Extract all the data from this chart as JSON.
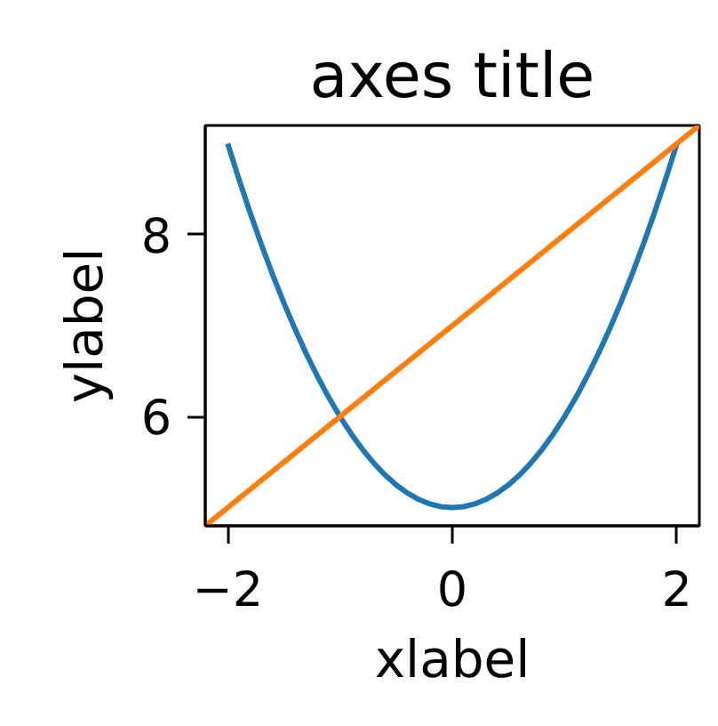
{
  "chart_data": {
    "type": "line",
    "title": "axes title",
    "xlabel": "xlabel",
    "ylabel": "ylabel",
    "xlim": [
      -2.2,
      2.2
    ],
    "ylim": [
      4.8,
      9.2
    ],
    "xticks": [
      {
        "value": -2,
        "label": "−2"
      },
      0,
      2
    ],
    "yticks": [
      6,
      8
    ],
    "series": [
      {
        "color": "#1f77b4",
        "x": [
          -2,
          -1.9,
          -1.8,
          -1.7,
          -1.6,
          -1.5,
          -1.4,
          -1.3,
          -1.2,
          -1.1,
          -1,
          -0.9,
          -0.8,
          -0.7,
          -0.6,
          -0.5,
          -0.4,
          -0.3,
          -0.2,
          -0.1,
          0,
          0.1,
          0.2,
          0.3,
          0.4,
          0.5,
          0.6,
          0.7,
          0.8,
          0.9,
          1,
          1.1,
          1.2,
          1.3,
          1.4,
          1.5,
          1.6,
          1.7,
          1.8,
          1.9,
          2
        ],
        "values": [
          9,
          8.61,
          8.24,
          7.89,
          7.56,
          7.25,
          6.96,
          6.69,
          6.44,
          6.21,
          6,
          5.81,
          5.64,
          5.49,
          5.36,
          5.25,
          5.16,
          5.09,
          5.04,
          5.01,
          5,
          5.01,
          5.04,
          5.09,
          5.16,
          5.25,
          5.36,
          5.49,
          5.64,
          5.81,
          6,
          6.21,
          6.44,
          6.69,
          6.96,
          7.25,
          7.56,
          7.89,
          8.24,
          8.61,
          9
        ]
      },
      {
        "color": "#ff7f0e",
        "x": [
          -2.2,
          2.2
        ],
        "values": [
          4.8,
          9.2
        ]
      }
    ]
  }
}
